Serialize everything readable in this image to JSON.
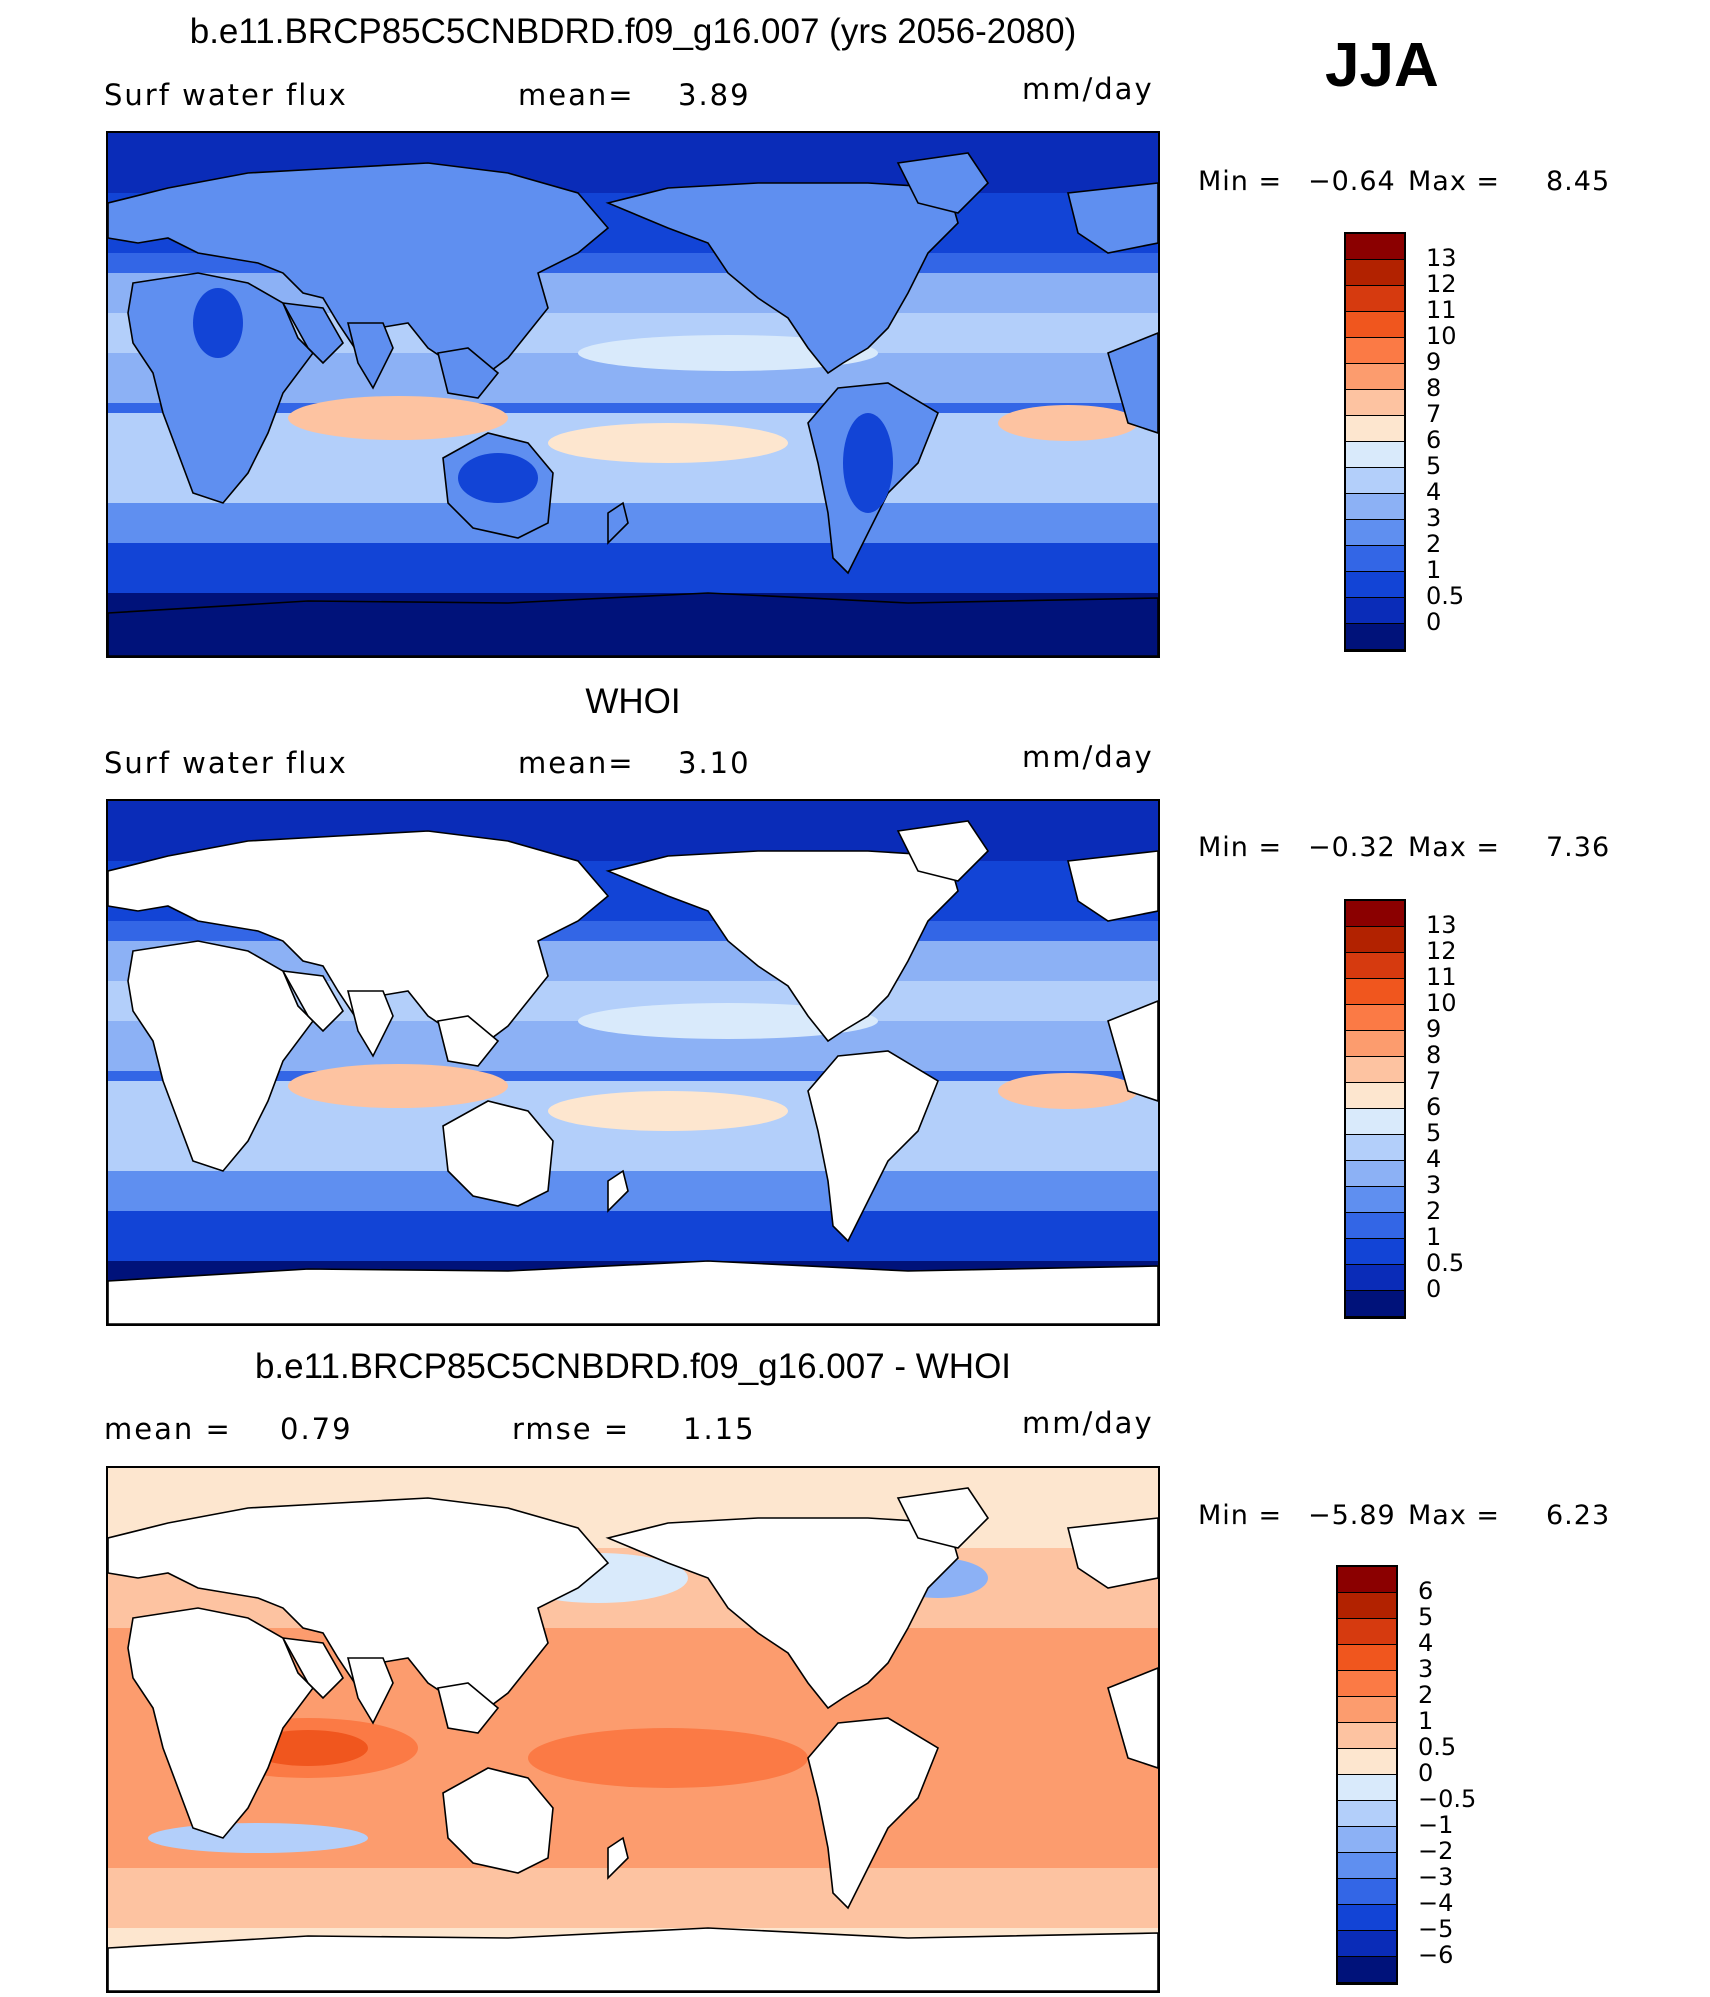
{
  "season": "JJA",
  "panels": [
    {
      "title": "b.e11.BRCP85C5CNBDRD.f09_g16.007 (yrs 2056-2080)",
      "left_label": "Surf water flux",
      "mid_label": "mean=",
      "mid_value": "3.89",
      "right_label": "mm/day",
      "min_label": "Min =",
      "min_value": "−0.64",
      "max_label": "Max =",
      "max_value": "8.45",
      "colorbar": {
        "labels": [
          "13",
          "12",
          "11",
          "10",
          "9",
          "8",
          "7",
          "6",
          "5",
          "4",
          "3",
          "2",
          "1",
          "0.5",
          "0"
        ],
        "colors": [
          "#8b0000",
          "#b22200",
          "#d63a0f",
          "#f0561e",
          "#fb7a45",
          "#fc9c6e",
          "#fdc3a1",
          "#fde6cf",
          "#d9eafb",
          "#b3cffa",
          "#8cb1f5",
          "#5f8ff0",
          "#3366e6",
          "#1244d6",
          "#0a2cb8",
          "#00127a"
        ]
      },
      "map": {
        "kind": "full",
        "ocean_levels": [
          0.55,
          0.4,
          0.3,
          0.18
        ],
        "tint": "blue"
      }
    },
    {
      "title": "WHOI",
      "left_label": "Surf water flux",
      "mid_label": "mean=",
      "mid_value": "3.10",
      "right_label": "mm/day",
      "min_label": "Min =",
      "min_value": "−0.32",
      "max_label": "Max =",
      "max_value": "7.36",
      "colorbar": {
        "labels": [
          "13",
          "12",
          "11",
          "10",
          "9",
          "8",
          "7",
          "6",
          "5",
          "4",
          "3",
          "2",
          "1",
          "0.5",
          "0"
        ],
        "colors": [
          "#8b0000",
          "#b22200",
          "#d63a0f",
          "#f0561e",
          "#fb7a45",
          "#fc9c6e",
          "#fdc3a1",
          "#fde6cf",
          "#d9eafb",
          "#b3cffa",
          "#8cb1f5",
          "#5f8ff0",
          "#3366e6",
          "#1244d6",
          "#0a2cb8",
          "#00127a"
        ]
      },
      "map": {
        "kind": "ocean",
        "tint": "blue"
      }
    },
    {
      "title": "b.e11.BRCP85C5CNBDRD.f09_g16.007 - WHOI",
      "left_label": "mean =",
      "left_value": "0.79",
      "mid_label": "rmse =",
      "mid_value": "1.15",
      "right_label": "mm/day",
      "min_label": "Min =",
      "min_value": "−5.89",
      "max_label": "Max =",
      "max_value": "6.23",
      "colorbar": {
        "labels": [
          "6",
          "5",
          "4",
          "3",
          "2",
          "1",
          "0.5",
          "0",
          "−0.5",
          "−1",
          "−2",
          "−3",
          "−4",
          "−5",
          "−6"
        ],
        "colors": [
          "#8b0000",
          "#b22200",
          "#d63a0f",
          "#f0561e",
          "#fb7a45",
          "#fc9c6e",
          "#fdc3a1",
          "#fde6cf",
          "#d9eafb",
          "#b3cffa",
          "#8cb1f5",
          "#5f8ff0",
          "#3366e6",
          "#1244d6",
          "#0a2cb8",
          "#00127a"
        ]
      },
      "map": {
        "kind": "ocean",
        "tint": "red"
      }
    }
  ],
  "chart_data": [
    {
      "type": "heatmap",
      "title": "b.e11.BRCP85C5CNBDRD.f09_g16.007 (yrs 2056-2080)",
      "variable": "Surf water flux",
      "units": "mm/day",
      "mean": 3.89,
      "min": -0.64,
      "max": 8.45,
      "contour_levels": [
        0,
        0.5,
        1,
        2,
        3,
        4,
        5,
        6,
        7,
        8,
        9,
        10,
        11,
        12,
        13
      ]
    },
    {
      "type": "heatmap",
      "title": "WHOI",
      "variable": "Surf water flux",
      "units": "mm/day",
      "mean": 3.1,
      "min": -0.32,
      "max": 7.36,
      "contour_levels": [
        0,
        0.5,
        1,
        2,
        3,
        4,
        5,
        6,
        7,
        8,
        9,
        10,
        11,
        12,
        13
      ]
    },
    {
      "type": "heatmap",
      "title": "b.e11.BRCP85C5CNBDRD.f09_g16.007 - WHOI",
      "units": "mm/day",
      "mean": 0.79,
      "rmse": 1.15,
      "min": -5.89,
      "max": 6.23,
      "contour_levels": [
        -6,
        -5,
        -4,
        -3,
        -2,
        -1,
        -0.5,
        0,
        0.5,
        1,
        2,
        3,
        4,
        5,
        6
      ]
    }
  ]
}
